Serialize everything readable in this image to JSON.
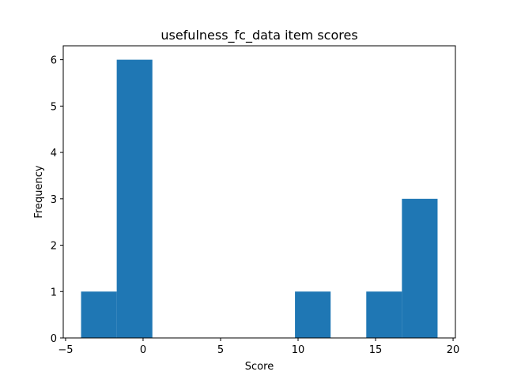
{
  "chart_data": {
    "type": "bar",
    "title": "usefulness_fc_data item scores",
    "xlabel": "Score",
    "ylabel": "Frequency",
    "xlim": [
      -5.15,
      20.15
    ],
    "ylim": [
      0,
      6.3
    ],
    "xticks": [
      -5,
      0,
      5,
      10,
      15,
      20
    ],
    "yticks": [
      0,
      1,
      2,
      3,
      4,
      5,
      6
    ],
    "bin_edges": [
      -4.0,
      -1.7,
      0.6,
      2.9,
      5.2,
      7.5,
      9.8,
      12.1,
      14.4,
      16.7,
      19.0
    ],
    "counts": [
      1,
      6,
      0,
      0,
      0,
      0,
      1,
      0,
      1,
      3
    ],
    "bar_color": "#1f77b4",
    "grid": false,
    "legend": false
  }
}
